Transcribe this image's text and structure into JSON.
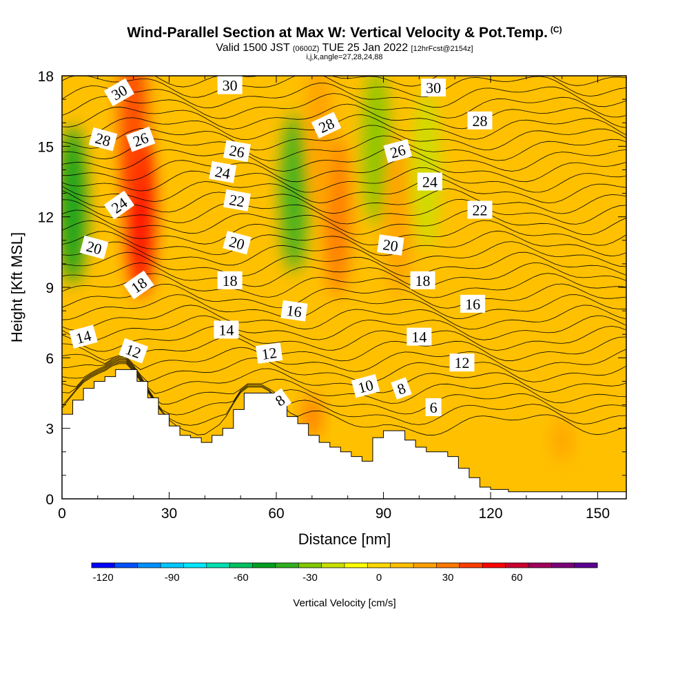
{
  "title": {
    "main": "Wind-Parallel Section at Max W: Vertical Velocity & Pot.Temp.",
    "copyright": "(C)",
    "valid_prefix": "Valid 1500 JST",
    "valid_utc": "(0600Z)",
    "valid_date": "TUE 25 Jan 2022",
    "forecast": "[12hrFcst@2154z]",
    "grid_info": "i,j,k,angle=27,28,24,88"
  },
  "chart_data": {
    "type": "heatmap",
    "xlabel": "Distance [nm]",
    "ylabel": "Height [Kft MSL]",
    "xlim": [
      0,
      158
    ],
    "ylim": [
      0,
      18
    ],
    "x_ticks": [
      0,
      30,
      60,
      90,
      120,
      150
    ],
    "y_ticks": [
      0,
      3,
      6,
      9,
      12,
      15,
      18
    ],
    "colorbar": {
      "label": "Vertical Velocity [cm/s]",
      "ticks": [
        -120,
        -90,
        -60,
        -30,
        0,
        30,
        60
      ],
      "min": -125,
      "step": 10,
      "colors": [
        "#0000ff",
        "#0050ff",
        "#0090ff",
        "#00c8ff",
        "#00e8ff",
        "#00e0b0",
        "#00c060",
        "#00a020",
        "#30b020",
        "#80c800",
        "#c8e000",
        "#ffff00",
        "#ffd800",
        "#ffc000",
        "#ffa000",
        "#ff7800",
        "#ff3c00",
        "#ff0000",
        "#cc0030",
        "#a0005a",
        "#7a0078",
        "#5a0090"
      ]
    },
    "terrain_height": [
      [
        0,
        3.6
      ],
      [
        3,
        4.2
      ],
      [
        6,
        4.7
      ],
      [
        9,
        5.0
      ],
      [
        12,
        5.2
      ],
      [
        15,
        5.5
      ],
      [
        18,
        5.5
      ],
      [
        21,
        5.0
      ],
      [
        24,
        4.3
      ],
      [
        27,
        3.6
      ],
      [
        30,
        3.1
      ],
      [
        33,
        2.7
      ],
      [
        36,
        2.6
      ],
      [
        39,
        2.4
      ],
      [
        42,
        2.7
      ],
      [
        45,
        3.0
      ],
      [
        48,
        3.8
      ],
      [
        51,
        4.5
      ],
      [
        54,
        4.5
      ],
      [
        57,
        4.5
      ],
      [
        60,
        4.0
      ],
      [
        63,
        3.5
      ],
      [
        66,
        3.2
      ],
      [
        69,
        2.7
      ],
      [
        72,
        2.4
      ],
      [
        75,
        2.2
      ],
      [
        78,
        2.0
      ],
      [
        81,
        1.8
      ],
      [
        84,
        1.6
      ],
      [
        87,
        2.6
      ],
      [
        90,
        2.9
      ],
      [
        93,
        2.9
      ],
      [
        96,
        2.5
      ],
      [
        99,
        2.2
      ],
      [
        102,
        2.0
      ],
      [
        105,
        2.0
      ],
      [
        108,
        1.8
      ],
      [
        111,
        1.3
      ],
      [
        114,
        0.9
      ],
      [
        117,
        0.5
      ],
      [
        120,
        0.4
      ],
      [
        125,
        0.3
      ],
      [
        130,
        0.3
      ],
      [
        135,
        0.3
      ],
      [
        140,
        0.3
      ],
      [
        145,
        0.3
      ],
      [
        150,
        0.3
      ],
      [
        155,
        0.3
      ],
      [
        158,
        0.3
      ]
    ],
    "velocity_cells": [
      {
        "x": 3,
        "y": 12.5,
        "value": -55
      },
      {
        "x": 22,
        "y": 12.0,
        "value": 45
      },
      {
        "x": 20,
        "y": 16.0,
        "value": 35
      },
      {
        "x": 65,
        "y": 13.0,
        "value": -40
      },
      {
        "x": 77,
        "y": 12.0,
        "value": 25
      },
      {
        "x": 72,
        "y": 15.5,
        "value": 18
      },
      {
        "x": 88,
        "y": 15.0,
        "value": -30
      },
      {
        "x": 94,
        "y": 12.0,
        "value": 22
      },
      {
        "x": 102,
        "y": 14.0,
        "value": -25
      },
      {
        "x": 70,
        "y": 3.5,
        "value": 30
      },
      {
        "x": 140,
        "y": 2.5,
        "value": 15
      }
    ],
    "contour_labels": [
      {
        "text": "30",
        "x": 16,
        "y": 17.3,
        "angle": -30
      },
      {
        "text": "30",
        "x": 47,
        "y": 17.6,
        "angle": 0
      },
      {
        "text": "30",
        "x": 104,
        "y": 17.5,
        "angle": 0
      },
      {
        "text": "28",
        "x": 11.5,
        "y": 15.3,
        "angle": 15
      },
      {
        "text": "26",
        "x": 22,
        "y": 15.3,
        "angle": -20
      },
      {
        "text": "28",
        "x": 74,
        "y": 15.9,
        "angle": -25
      },
      {
        "text": "28",
        "x": 117,
        "y": 16.1,
        "angle": 0
      },
      {
        "text": "26",
        "x": 49,
        "y": 14.8,
        "angle": 10
      },
      {
        "text": "26",
        "x": 94,
        "y": 14.8,
        "angle": -15
      },
      {
        "text": "24",
        "x": 45,
        "y": 13.9,
        "angle": 10
      },
      {
        "text": "24",
        "x": 16,
        "y": 12.5,
        "angle": -35
      },
      {
        "text": "24",
        "x": 103,
        "y": 13.5,
        "angle": 0
      },
      {
        "text": "22",
        "x": 49,
        "y": 12.7,
        "angle": 10
      },
      {
        "text": "22",
        "x": 117,
        "y": 12.3,
        "angle": 0
      },
      {
        "text": "20",
        "x": 9,
        "y": 10.7,
        "angle": 15
      },
      {
        "text": "20",
        "x": 49,
        "y": 10.9,
        "angle": 15
      },
      {
        "text": "20",
        "x": 92,
        "y": 10.8,
        "angle": 8
      },
      {
        "text": "18",
        "x": 21.5,
        "y": 9.1,
        "angle": -35
      },
      {
        "text": "18",
        "x": 47,
        "y": 9.3,
        "angle": 0
      },
      {
        "text": "18",
        "x": 101,
        "y": 9.3,
        "angle": 0
      },
      {
        "text": "16",
        "x": 65,
        "y": 8.0,
        "angle": 8
      },
      {
        "text": "16",
        "x": 115,
        "y": 8.3,
        "angle": 0
      },
      {
        "text": "14",
        "x": 6,
        "y": 6.9,
        "angle": -15
      },
      {
        "text": "14",
        "x": 46,
        "y": 7.2,
        "angle": 0
      },
      {
        "text": "14",
        "x": 100,
        "y": 6.9,
        "angle": 0
      },
      {
        "text": "12",
        "x": 20,
        "y": 6.3,
        "angle": 20
      },
      {
        "text": "12",
        "x": 58,
        "y": 6.2,
        "angle": -8
      },
      {
        "text": "12",
        "x": 112,
        "y": 5.8,
        "angle": 0
      },
      {
        "text": "10",
        "x": 85,
        "y": 4.8,
        "angle": -15
      },
      {
        "text": "8",
        "x": 61,
        "y": 4.2,
        "angle": -35
      },
      {
        "text": "8",
        "x": 95,
        "y": 4.7,
        "angle": -20
      },
      {
        "text": "6",
        "x": 104,
        "y": 3.9,
        "angle": 0
      }
    ]
  }
}
